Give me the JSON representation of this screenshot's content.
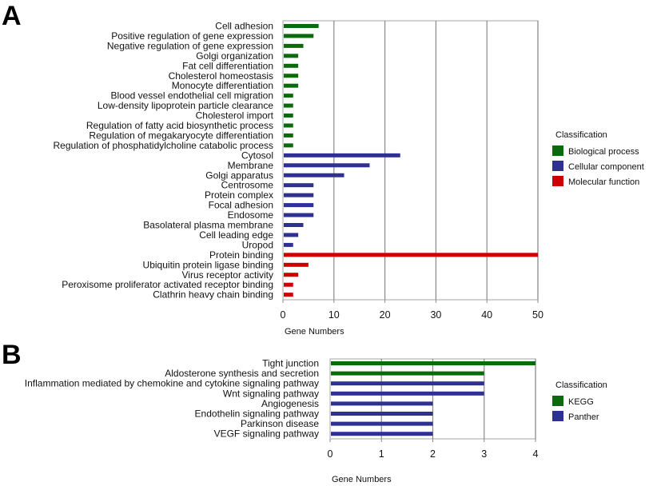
{
  "chart_data": [
    {
      "panel": "A",
      "type": "bar",
      "orientation": "horizontal",
      "title": "",
      "xlabel": "Gene Numbers",
      "ylabel": "",
      "xlim": [
        0,
        50
      ],
      "xticks": [
        0,
        10,
        20,
        30,
        40,
        50
      ],
      "grid": true,
      "legend": {
        "title": "Classification",
        "position": "right",
        "entries": [
          {
            "name": "Biological process",
            "color": "#0b6a0b"
          },
          {
            "name": "Cellular component",
            "color": "#2e3192"
          },
          {
            "name": "Molecular function",
            "color": "#cc0000"
          }
        ]
      },
      "categories": [
        "Cell adhesion",
        "Positive regulation of gene expression",
        "Negative regulation of gene expression",
        "Golgi organization",
        "Fat cell differentiation",
        "Cholesterol homeostasis",
        "Monocyte differentiation",
        "Blood vessel endothelial cell migration",
        "Low-density lipoprotein particle clearance",
        "Cholesterol import",
        "Regulation of fatty acid biosynthetic process",
        "Regulation of megakaryocyte differentiation",
        "Regulation of phosphatidylcholine catabolic process",
        "Cytosol",
        "Membrane",
        "Golgi apparatus",
        "Centrosome",
        "Protein complex",
        "Focal adhesion",
        "Endosome",
        "Basolateral plasma membrane",
        "Cell leading edge",
        "Uropod",
        "Protein binding",
        "Ubiquitin protein ligase binding",
        "Virus receptor activity",
        "Peroxisome proliferator activated receptor binding",
        "Clathrin heavy chain binding"
      ],
      "values": [
        7,
        6,
        4,
        3,
        3,
        3,
        3,
        2,
        2,
        2,
        2,
        2,
        2,
        23,
        17,
        12,
        6,
        6,
        6,
        6,
        4,
        3,
        2,
        50,
        5,
        3,
        2,
        2
      ],
      "classes": [
        "Biological process",
        "Biological process",
        "Biological process",
        "Biological process",
        "Biological process",
        "Biological process",
        "Biological process",
        "Biological process",
        "Biological process",
        "Biological process",
        "Biological process",
        "Biological process",
        "Biological process",
        "Cellular component",
        "Cellular component",
        "Cellular component",
        "Cellular component",
        "Cellular component",
        "Cellular component",
        "Cellular component",
        "Cellular component",
        "Cellular component",
        "Cellular component",
        "Molecular function",
        "Molecular function",
        "Molecular function",
        "Molecular function",
        "Molecular function"
      ]
    },
    {
      "panel": "B",
      "type": "bar",
      "orientation": "horizontal",
      "title": "",
      "xlabel": "Gene Numbers",
      "ylabel": "",
      "xlim": [
        0,
        4
      ],
      "xticks": [
        0,
        1,
        2,
        3,
        4
      ],
      "grid": true,
      "legend": {
        "title": "Classification",
        "position": "right",
        "entries": [
          {
            "name": "KEGG",
            "color": "#0b6a0b"
          },
          {
            "name": "Panther",
            "color": "#2e3192"
          }
        ]
      },
      "categories": [
        "Tight junction",
        "Aldosterone synthesis and secretion",
        "Inflammation mediated by chemokine and cytokine signaling pathway",
        "Wnt signaling pathway",
        "Angiogenesis",
        "Endothelin signaling pathway",
        "Parkinson disease",
        "VEGF signaling pathway"
      ],
      "values": [
        4,
        3,
        3,
        3,
        2,
        2,
        2,
        2
      ],
      "classes": [
        "KEGG",
        "KEGG",
        "Panther",
        "Panther",
        "Panther",
        "Panther",
        "Panther",
        "Panther"
      ]
    }
  ],
  "panels": {
    "a_letter": "A",
    "b_letter": "B"
  }
}
